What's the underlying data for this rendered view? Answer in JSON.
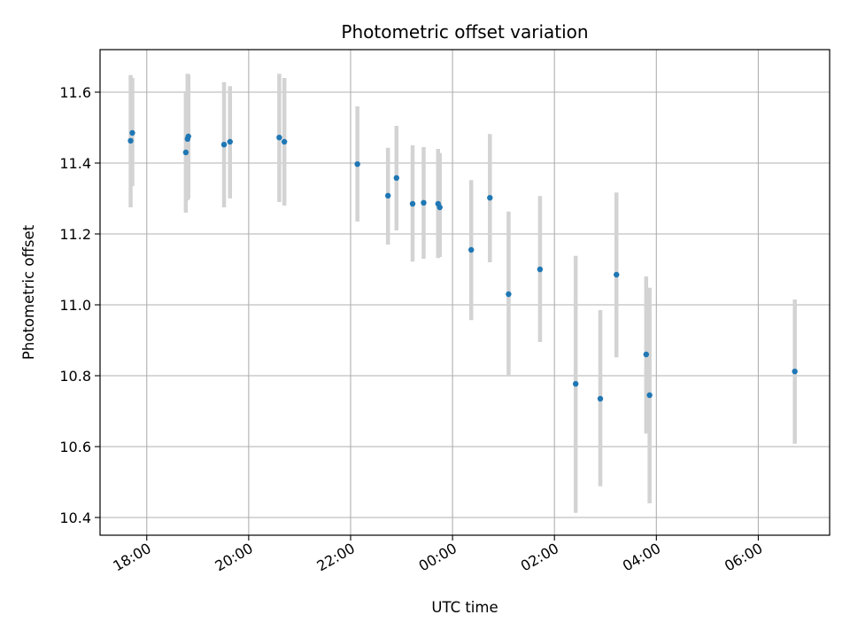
{
  "chart_data": {
    "type": "scatter",
    "title": "Photometric offset variation",
    "xlabel": "UTC time",
    "ylabel": "Photometric offset",
    "grid": true,
    "x_ticks": [
      "18:00",
      "20:00",
      "22:00",
      "00:00",
      "02:00",
      "04:00",
      "06:00"
    ],
    "y_ticks": [
      "10.4",
      "10.6",
      "10.8",
      "11.0",
      "11.2",
      "11.4",
      "11.6"
    ],
    "y_tick_values": [
      10.4,
      10.6,
      10.8,
      11.0,
      11.2,
      11.4,
      11.6
    ],
    "xlim": [
      "17:05",
      "07:24"
    ],
    "ylim": [
      10.35,
      11.72
    ],
    "colors": {
      "point": "#1f77b4",
      "errorbar": "#d3d3d3",
      "grid": "#b0b0b0"
    },
    "points": [
      {
        "t": "17:41",
        "y": 11.463,
        "lo": 11.275,
        "hi": 11.648
      },
      {
        "t": "17:43",
        "y": 11.485,
        "lo": 11.335,
        "hi": 11.64
      },
      {
        "t": "18:46",
        "y": 11.43,
        "lo": 11.26,
        "hi": 11.6
      },
      {
        "t": "18:48",
        "y": 11.468,
        "lo": 11.295,
        "hi": 11.652
      },
      {
        "t": "18:49",
        "y": 11.475,
        "lo": 11.3,
        "hi": 11.65
      },
      {
        "t": "19:31",
        "y": 11.452,
        "lo": 11.275,
        "hi": 11.628
      },
      {
        "t": "19:38",
        "y": 11.46,
        "lo": 11.3,
        "hi": 11.617
      },
      {
        "t": "20:36",
        "y": 11.472,
        "lo": 11.29,
        "hi": 11.652
      },
      {
        "t": "20:42",
        "y": 11.46,
        "lo": 11.28,
        "hi": 11.64
      },
      {
        "t": "22:08",
        "y": 11.397,
        "lo": 11.235,
        "hi": 11.56
      },
      {
        "t": "22:44",
        "y": 11.308,
        "lo": 11.17,
        "hi": 11.443
      },
      {
        "t": "22:54",
        "y": 11.358,
        "lo": 11.21,
        "hi": 11.505
      },
      {
        "t": "23:13",
        "y": 11.285,
        "lo": 11.122,
        "hi": 11.45
      },
      {
        "t": "23:26",
        "y": 11.288,
        "lo": 11.13,
        "hi": 11.445
      },
      {
        "t": "23:43",
        "y": 11.285,
        "lo": 11.132,
        "hi": 11.44
      },
      {
        "t": "23:45",
        "y": 11.275,
        "lo": 11.135,
        "hi": 11.428
      },
      {
        "t": "00:22",
        "y": 11.155,
        "lo": 10.957,
        "hi": 11.352
      },
      {
        "t": "00:44",
        "y": 11.302,
        "lo": 11.12,
        "hi": 11.482
      },
      {
        "t": "01:06",
        "y": 11.03,
        "lo": 10.8,
        "hi": 11.263
      },
      {
        "t": "01:43",
        "y": 11.1,
        "lo": 10.895,
        "hi": 11.307
      },
      {
        "t": "02:25",
        "y": 10.777,
        "lo": 10.413,
        "hi": 11.138
      },
      {
        "t": "02:54",
        "y": 10.735,
        "lo": 10.488,
        "hi": 10.985
      },
      {
        "t": "03:13",
        "y": 11.085,
        "lo": 10.852,
        "hi": 11.317
      },
      {
        "t": "03:48",
        "y": 10.86,
        "lo": 10.637,
        "hi": 11.08
      },
      {
        "t": "03:52",
        "y": 10.745,
        "lo": 10.44,
        "hi": 11.048
      },
      {
        "t": "06:43",
        "y": 10.812,
        "lo": 10.608,
        "hi": 11.015
      }
    ]
  }
}
